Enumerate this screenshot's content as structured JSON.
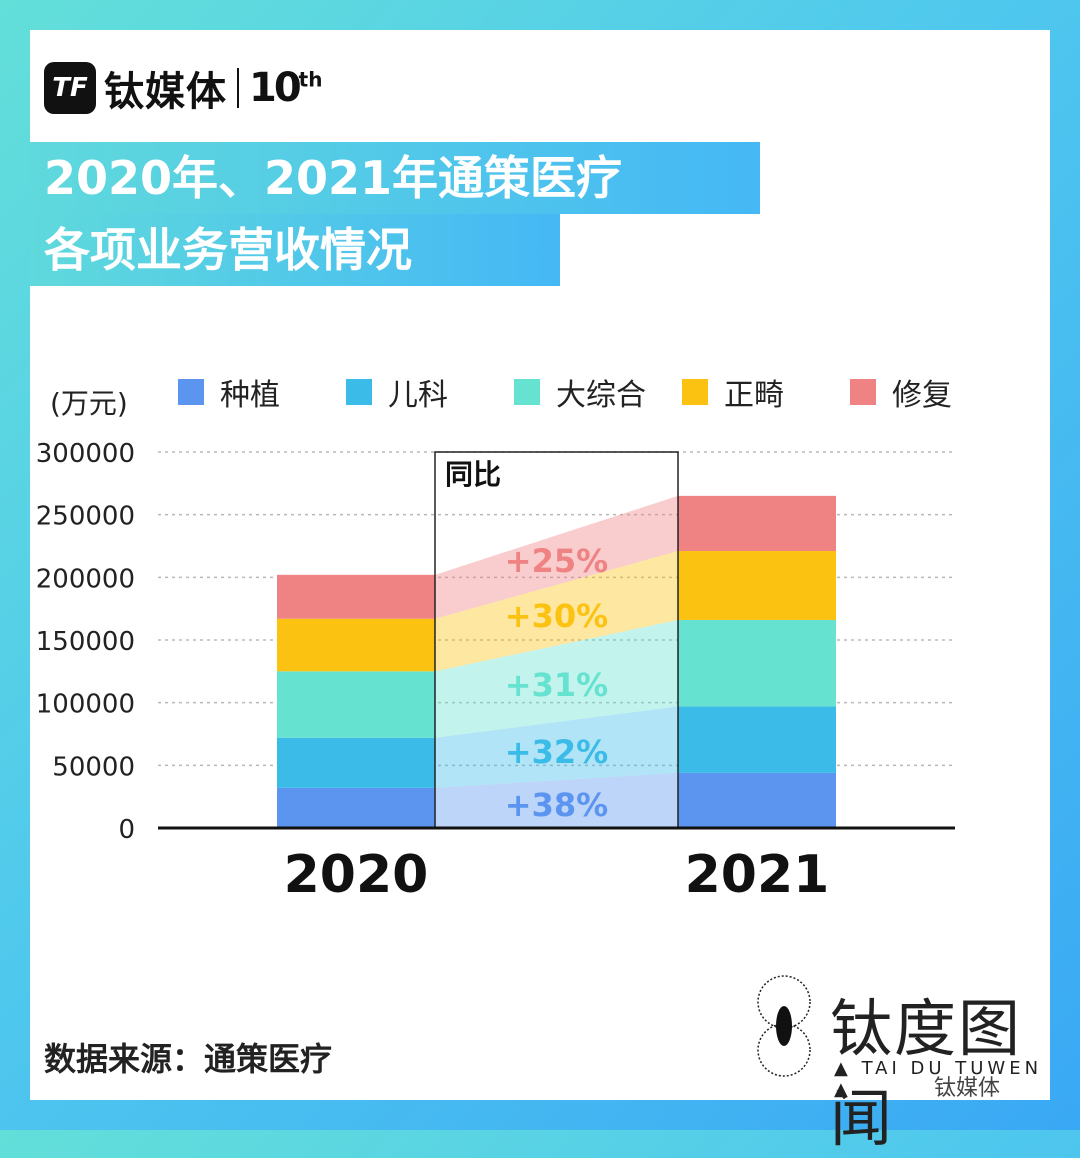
{
  "brand": {
    "logo": "TF",
    "name": "钛媒体",
    "ten": "10",
    "ten_sup": "th"
  },
  "title": {
    "line1": "2020年、2021年通策医疗",
    "line2": "各项业务营收情况"
  },
  "chart_data": {
    "type": "bar",
    "stacked": true,
    "unit_label": "(万元)",
    "categories": [
      "2020",
      "2021"
    ],
    "ylim": [
      0,
      300000
    ],
    "yticks": [
      300000,
      250000,
      200000,
      150000,
      100000,
      50000,
      0
    ],
    "grid": true,
    "series": [
      {
        "name": "种植",
        "color": "#5b95f0",
        "values": [
          32000,
          44000
        ]
      },
      {
        "name": "儿科",
        "color": "#3bbbe8",
        "values": [
          40000,
          53000
        ]
      },
      {
        "name": "大综合",
        "color": "#66e2d0",
        "values": [
          53000,
          69000
        ]
      },
      {
        "name": "正畸",
        "color": "#fcc212",
        "values": [
          42000,
          55000
        ]
      },
      {
        "name": "修复",
        "color": "#ef8282",
        "values": [
          35000,
          44000
        ]
      }
    ],
    "yoy_label": "同比",
    "yoy": [
      "+38%",
      "+32%",
      "+31%",
      "+30%",
      "+25%"
    ],
    "yoy_colors": [
      "#5b95f0",
      "#3bbbe8",
      "#66e2d0",
      "#fcc212",
      "#ef8282"
    ]
  },
  "source": "数据来源：通策医疗",
  "watermark": {
    "name": "钛度图闻",
    "sub": "▲ TAI DU TUWEN ▲",
    "wechat": "钛媒体"
  }
}
